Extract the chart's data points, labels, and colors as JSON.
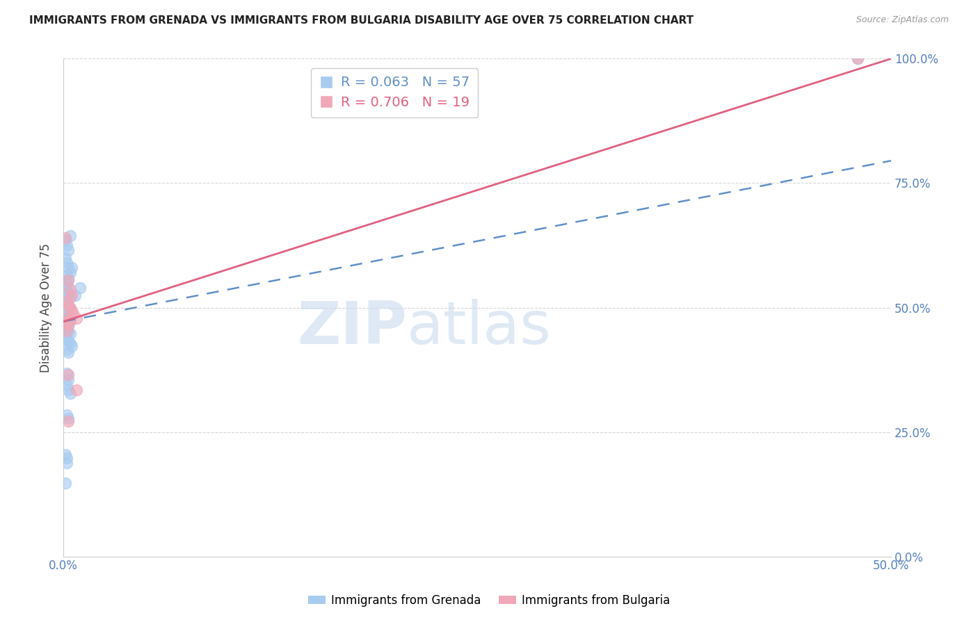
{
  "title": "IMMIGRANTS FROM GRENADA VS IMMIGRANTS FROM BULGARIA DISABILITY AGE OVER 75 CORRELATION CHART",
  "source": "Source: ZipAtlas.com",
  "ylabel": "Disability Age Over 75",
  "xlim": [
    0.0,
    0.5
  ],
  "ylim": [
    0.0,
    1.0
  ],
  "yticks_right": [
    0.0,
    0.25,
    0.5,
    0.75,
    1.0
  ],
  "ytick_labels_right": [
    "0.0%",
    "25.0%",
    "50.0%",
    "75.0%",
    "100.0%"
  ],
  "xticks": [
    0.0,
    0.05,
    0.1,
    0.15,
    0.2,
    0.25,
    0.3,
    0.35,
    0.4,
    0.45,
    0.5
  ],
  "xtick_labels": [
    "0.0%",
    "",
    "",
    "",
    "",
    "",
    "",
    "",
    "",
    "",
    "50.0%"
  ],
  "grenada_color": "#A8CCF0",
  "bulgaria_color": "#F0A8B8",
  "grenada_R": 0.063,
  "grenada_N": 57,
  "bulgaria_R": 0.706,
  "bulgaria_N": 19,
  "grenada_line_color": "#6090C8",
  "bulgaria_line_color": "#E06080",
  "watermark_zip": "ZIP",
  "watermark_atlas": "atlas",
  "grenada_line": [
    [
      0.0,
      0.472
    ],
    [
      0.5,
      0.795
    ]
  ],
  "bulgaria_line": [
    [
      0.0,
      0.472
    ],
    [
      0.5,
      1.0
    ]
  ],
  "grenada_scatter": [
    [
      0.001,
      0.635
    ],
    [
      0.002,
      0.625
    ],
    [
      0.003,
      0.615
    ],
    [
      0.004,
      0.645
    ],
    [
      0.001,
      0.6
    ],
    [
      0.002,
      0.59
    ],
    [
      0.003,
      0.58
    ],
    [
      0.004,
      0.57
    ],
    [
      0.005,
      0.58
    ],
    [
      0.002,
      0.565
    ],
    [
      0.003,
      0.558
    ],
    [
      0.001,
      0.552
    ],
    [
      0.002,
      0.548
    ],
    [
      0.003,
      0.542
    ],
    [
      0.001,
      0.538
    ],
    [
      0.002,
      0.53
    ],
    [
      0.003,
      0.525
    ],
    [
      0.004,
      0.52
    ],
    [
      0.001,
      0.515
    ],
    [
      0.002,
      0.51
    ],
    [
      0.003,
      0.505
    ],
    [
      0.004,
      0.5
    ],
    [
      0.001,
      0.497
    ],
    [
      0.002,
      0.493
    ],
    [
      0.003,
      0.49
    ],
    [
      0.001,
      0.485
    ],
    [
      0.002,
      0.48
    ],
    [
      0.003,
      0.477
    ],
    [
      0.004,
      0.473
    ],
    [
      0.001,
      0.47
    ],
    [
      0.002,
      0.467
    ],
    [
      0.003,
      0.463
    ],
    [
      0.001,
      0.46
    ],
    [
      0.002,
      0.457
    ],
    [
      0.003,
      0.452
    ],
    [
      0.004,
      0.447
    ],
    [
      0.001,
      0.443
    ],
    [
      0.002,
      0.438
    ],
    [
      0.003,
      0.432
    ],
    [
      0.004,
      0.428
    ],
    [
      0.005,
      0.422
    ],
    [
      0.002,
      0.415
    ],
    [
      0.003,
      0.41
    ],
    [
      0.007,
      0.525
    ],
    [
      0.01,
      0.54
    ],
    [
      0.002,
      0.368
    ],
    [
      0.003,
      0.355
    ],
    [
      0.002,
      0.345
    ],
    [
      0.003,
      0.335
    ],
    [
      0.004,
      0.328
    ],
    [
      0.002,
      0.285
    ],
    [
      0.003,
      0.278
    ],
    [
      0.001,
      0.205
    ],
    [
      0.002,
      0.198
    ],
    [
      0.002,
      0.188
    ],
    [
      0.48,
      1.0
    ],
    [
      0.001,
      0.148
    ]
  ],
  "bulgaria_scatter": [
    [
      0.001,
      0.64
    ],
    [
      0.003,
      0.555
    ],
    [
      0.004,
      0.535
    ],
    [
      0.005,
      0.525
    ],
    [
      0.002,
      0.513
    ],
    [
      0.003,
      0.505
    ],
    [
      0.004,
      0.5
    ],
    [
      0.005,
      0.492
    ],
    [
      0.006,
      0.488
    ],
    [
      0.003,
      0.48
    ],
    [
      0.004,
      0.476
    ],
    [
      0.002,
      0.47
    ],
    [
      0.003,
      0.464
    ],
    [
      0.002,
      0.453
    ],
    [
      0.008,
      0.478
    ],
    [
      0.003,
      0.365
    ],
    [
      0.008,
      0.335
    ],
    [
      0.003,
      0.272
    ],
    [
      0.48,
      1.0
    ]
  ],
  "background_color": "#FFFFFF",
  "grid_color": "#CCCCCC"
}
